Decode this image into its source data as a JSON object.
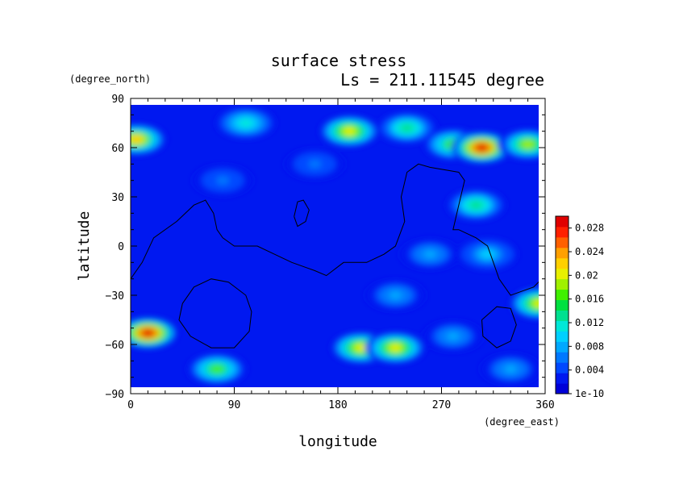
{
  "chart_data": {
    "type": "heatmap",
    "title": "surface stress",
    "subtitle": "Ls = 211.11545 degree",
    "xlabel": "longitude",
    "ylabel": "latitude",
    "x_unit": "(degree_east)",
    "y_unit": "(degree_north)",
    "xlim": [
      0,
      360
    ],
    "ylim": [
      -90,
      90
    ],
    "x_ticks": [
      "0",
      "90",
      "180",
      "270",
      "360"
    ],
    "y_ticks": [
      "90",
      "60",
      "30",
      "0",
      "−30",
      "−60",
      "−90"
    ],
    "colorbar": {
      "range": [
        1e-10,
        0.03
      ],
      "tick_values": [
        0.028,
        0.024,
        0.02,
        0.016,
        0.012,
        0.008,
        0.004,
        0
      ],
      "tick_labels": [
        "0.028",
        "0.024",
        "0.02",
        "0.016",
        "0.012",
        "0.008",
        "0.004",
        "1e-10"
      ],
      "colors": [
        "#0000d8",
        "#0018f0",
        "#0048ff",
        "#0078ff",
        "#00a8ff",
        "#00d0ff",
        "#00e8d8",
        "#00e090",
        "#00e040",
        "#40f000",
        "#a0f000",
        "#e8f000",
        "#ffd000",
        "#ffa000",
        "#ff6000",
        "#ff2000",
        "#e00000"
      ]
    },
    "background_value": 0.002,
    "hotspots": [
      {
        "lon": 5,
        "lat": 65,
        "value": 0.022
      },
      {
        "lon": 190,
        "lat": 70,
        "value": 0.02
      },
      {
        "lon": 240,
        "lat": 72,
        "value": 0.014
      },
      {
        "lon": 280,
        "lat": 62,
        "value": 0.016
      },
      {
        "lon": 305,
        "lat": 60,
        "value": 0.03
      },
      {
        "lon": 345,
        "lat": 62,
        "value": 0.018
      },
      {
        "lon": 100,
        "lat": 75,
        "value": 0.012
      },
      {
        "lon": 15,
        "lat": -53,
        "value": 0.03
      },
      {
        "lon": 355,
        "lat": -35,
        "value": 0.02
      },
      {
        "lon": 200,
        "lat": -62,
        "value": 0.02
      },
      {
        "lon": 230,
        "lat": -62,
        "value": 0.02
      },
      {
        "lon": 75,
        "lat": -75,
        "value": 0.016
      },
      {
        "lon": 300,
        "lat": 25,
        "value": 0.014
      },
      {
        "lon": 310,
        "lat": -5,
        "value": 0.01
      },
      {
        "lon": 260,
        "lat": -5,
        "value": 0.008
      },
      {
        "lon": 230,
        "lat": -30,
        "value": 0.008
      },
      {
        "lon": 280,
        "lat": -55,
        "value": 0.008
      },
      {
        "lon": 80,
        "lat": 40,
        "value": 0.006
      },
      {
        "lon": 160,
        "lat": 50,
        "value": 0.006
      },
      {
        "lon": 330,
        "lat": -75,
        "value": 0.008
      }
    ],
    "contours": [
      {
        "name": "continent-north",
        "points": [
          [
            0,
            -20
          ],
          [
            10,
            -10
          ],
          [
            20,
            5
          ],
          [
            40,
            15
          ],
          [
            55,
            25
          ],
          [
            65,
            28
          ],
          [
            72,
            20
          ],
          [
            75,
            10
          ],
          [
            80,
            5
          ],
          [
            90,
            0
          ],
          [
            110,
            0
          ],
          [
            125,
            -5
          ],
          [
            140,
            -10
          ],
          [
            160,
            -15
          ],
          [
            170,
            -18
          ],
          [
            185,
            -10
          ],
          [
            205,
            -10
          ],
          [
            220,
            -5
          ],
          [
            230,
            0
          ],
          [
            238,
            15
          ],
          [
            235,
            30
          ],
          [
            240,
            45
          ],
          [
            250,
            50
          ],
          [
            260,
            48
          ],
          [
            285,
            45
          ],
          [
            290,
            40
          ],
          [
            285,
            25
          ],
          [
            280,
            10
          ],
          [
            285,
            10
          ],
          [
            300,
            5
          ],
          [
            310,
            0
          ],
          [
            315,
            -10
          ],
          [
            320,
            -20
          ],
          [
            330,
            -30
          ],
          [
            350,
            -25
          ],
          [
            360,
            -18
          ]
        ]
      },
      {
        "name": "island-small",
        "points": [
          [
            142,
            18
          ],
          [
            145,
            27
          ],
          [
            150,
            28
          ],
          [
            155,
            22
          ],
          [
            152,
            15
          ],
          [
            145,
            12
          ],
          [
            142,
            18
          ]
        ]
      },
      {
        "name": "ring-left",
        "points": [
          [
            45,
            -35
          ],
          [
            55,
            -25
          ],
          [
            70,
            -20
          ],
          [
            85,
            -22
          ],
          [
            100,
            -30
          ],
          [
            105,
            -40
          ],
          [
            103,
            -52
          ],
          [
            90,
            -62
          ],
          [
            70,
            -62
          ],
          [
            52,
            -55
          ],
          [
            42,
            -45
          ],
          [
            45,
            -35
          ]
        ]
      },
      {
        "name": "ring-right",
        "points": [
          [
            305,
            -45
          ],
          [
            318,
            -37
          ],
          [
            330,
            -38
          ],
          [
            335,
            -48
          ],
          [
            330,
            -58
          ],
          [
            318,
            -62
          ],
          [
            306,
            -55
          ],
          [
            305,
            -45
          ]
        ]
      }
    ]
  }
}
